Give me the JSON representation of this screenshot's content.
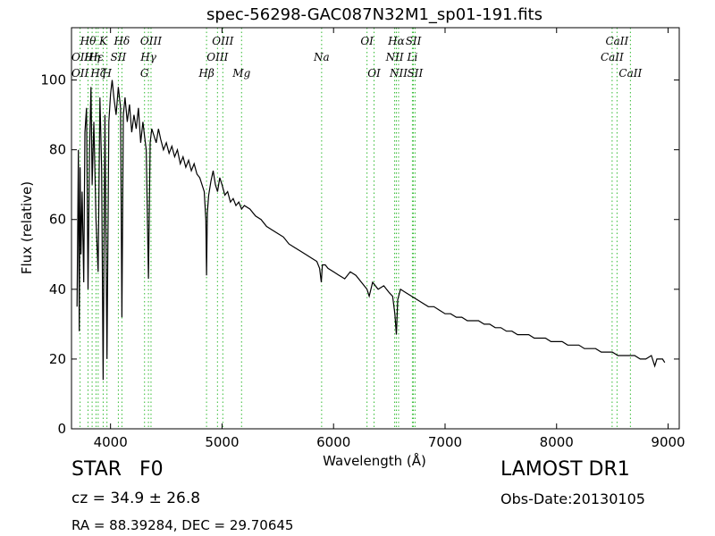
{
  "header": {
    "title": "spec-56298-GAC087N32M1_sp01-191.fits"
  },
  "info": {
    "object_class": "STAR",
    "subclass": "F0",
    "cz_text": "cz = 34.9 ± 26.8",
    "survey": "LAMOST DR1",
    "obs_date": "Obs-Date:20130105",
    "radec": "RA = 88.39284, DEC = 29.70645"
  },
  "colors": {
    "spectrum": "#000000",
    "line_marker": "#33bb33"
  },
  "chart_data": {
    "type": "line",
    "title": "spec-56298-GAC087N32M1_sp01-191.fits",
    "xlabel": "Wavelength (Å)",
    "ylabel": "Flux (relative)",
    "xlim": [
      3650,
      9100
    ],
    "ylim": [
      0,
      115
    ],
    "xticks": [
      4000,
      5000,
      6000,
      7000,
      8000,
      9000
    ],
    "yticks": [
      0,
      20,
      40,
      60,
      80,
      100
    ],
    "grid": false,
    "series": [
      {
        "x": [
          3700,
          3712,
          3720,
          3727,
          3735,
          3745,
          3760,
          3770,
          3785,
          3798,
          3812,
          3825,
          3835,
          3850,
          3870,
          3889,
          3905,
          3920,
          3934,
          3950,
          3968,
          3985,
          4000,
          4015,
          4030,
          4050,
          4070,
          4090,
          4102,
          4115,
          4130,
          4150,
          4170,
          4190,
          4210,
          4230,
          4250,
          4270,
          4290,
          4305,
          4320,
          4340,
          4355,
          4370,
          4390,
          4410,
          4430,
          4450,
          4475,
          4500,
          4525,
          4550,
          4575,
          4600,
          4625,
          4650,
          4675,
          4700,
          4725,
          4750,
          4775,
          4800,
          4820,
          4840,
          4855,
          4861,
          4868,
          4880,
          4900,
          4920,
          4940,
          4960,
          4980,
          5000,
          5025,
          5050,
          5075,
          5100,
          5125,
          5150,
          5175,
          5200,
          5250,
          5300,
          5350,
          5400,
          5450,
          5500,
          5550,
          5600,
          5650,
          5700,
          5750,
          5800,
          5850,
          5875,
          5890,
          5900,
          5925,
          5950,
          6000,
          6050,
          6100,
          6150,
          6200,
          6250,
          6300,
          6320,
          6350,
          6400,
          6450,
          6500,
          6530,
          6550,
          6563,
          6575,
          6600,
          6650,
          6700,
          6750,
          6800,
          6850,
          6900,
          6950,
          7000,
          7050,
          7100,
          7150,
          7200,
          7250,
          7300,
          7350,
          7400,
          7450,
          7500,
          7550,
          7600,
          7650,
          7700,
          7750,
          7800,
          7850,
          7900,
          7950,
          8000,
          8050,
          8100,
          8150,
          8200,
          8250,
          8300,
          8350,
          8400,
          8450,
          8500,
          8550,
          8600,
          8650,
          8700,
          8750,
          8800,
          8850,
          8880,
          8900,
          8950,
          8970
        ],
        "y": [
          35,
          80,
          28,
          75,
          50,
          68,
          42,
          85,
          92,
          40,
          80,
          98,
          70,
          88,
          60,
          45,
          95,
          75,
          14,
          90,
          20,
          88,
          96,
          100,
          95,
          90,
          98,
          92,
          32,
          90,
          95,
          88,
          93,
          85,
          90,
          86,
          92,
          82,
          88,
          84,
          80,
          43,
          82,
          86,
          84,
          82,
          86,
          83,
          80,
          82,
          79,
          81,
          78,
          80,
          76,
          78,
          75,
          77,
          74,
          76,
          73,
          72,
          70,
          68,
          60,
          44,
          62,
          67,
          71,
          74,
          70,
          68,
          72,
          70,
          67,
          68,
          65,
          66,
          64,
          65,
          63,
          64,
          63,
          61,
          60,
          58,
          57,
          56,
          55,
          53,
          52,
          51,
          50,
          49,
          48,
          46,
          42,
          47,
          47,
          46,
          45,
          44,
          43,
          45,
          44,
          42,
          40,
          38,
          42,
          40,
          41,
          39,
          38,
          33,
          27,
          37,
          40,
          39,
          38,
          37,
          36,
          35,
          35,
          34,
          33,
          33,
          32,
          32,
          31,
          31,
          31,
          30,
          30,
          29,
          29,
          28,
          28,
          27,
          27,
          27,
          26,
          26,
          26,
          25,
          25,
          25,
          24,
          24,
          24,
          23,
          23,
          23,
          22,
          22,
          22,
          21,
          21,
          21,
          21,
          20,
          20,
          21,
          18,
          20,
          20,
          19
        ]
      }
    ],
    "spectral_lines": [
      {
        "label": "OII",
        "x": 3727,
        "row": 1
      },
      {
        "label": "OII",
        "x": 3727,
        "row": 2
      },
      {
        "label": "Hθ",
        "x": 3798,
        "row": 0
      },
      {
        "label": "Hη",
        "x": 3835,
        "row": 1
      },
      {
        "label": "Hζ",
        "x": 3889,
        "row": 2
      },
      {
        "label": "Hε",
        "x": 3870,
        "row": 1
      },
      {
        "label": "K",
        "x": 3934,
        "row": 0
      },
      {
        "label": "H",
        "x": 3968,
        "row": 2
      },
      {
        "label": "SII",
        "x": 4070,
        "row": 1
      },
      {
        "label": "Hδ",
        "x": 4102,
        "row": 0
      },
      {
        "label": "Hγ",
        "x": 4340,
        "row": 1
      },
      {
        "label": "G",
        "x": 4305,
        "row": 2
      },
      {
        "label": "OIII",
        "x": 4363,
        "row": 0
      },
      {
        "label": "Hβ",
        "x": 4861,
        "row": 2
      },
      {
        "label": "OIII",
        "x": 4959,
        "row": 1
      },
      {
        "label": "OIII",
        "x": 5007,
        "row": 0
      },
      {
        "label": "Mg",
        "x": 5175,
        "row": 2
      },
      {
        "label": "Na",
        "x": 5893,
        "row": 1
      },
      {
        "label": "OI",
        "x": 6300,
        "row": 0
      },
      {
        "label": "OI",
        "x": 6363,
        "row": 2
      },
      {
        "label": "NII",
        "x": 6548,
        "row": 1
      },
      {
        "label": "NII",
        "x": 6583,
        "row": 2
      },
      {
        "label": "Hα",
        "x": 6563,
        "row": 0
      },
      {
        "label": "SII",
        "x": 6716,
        "row": 0
      },
      {
        "label": "Li",
        "x": 6707,
        "row": 1
      },
      {
        "label": "SII",
        "x": 6731,
        "row": 2
      },
      {
        "label": "CaII",
        "x": 8498,
        "row": 1
      },
      {
        "label": "CaII",
        "x": 8542,
        "row": 0
      },
      {
        "label": "CaII",
        "x": 8662,
        "row": 2
      }
    ]
  }
}
